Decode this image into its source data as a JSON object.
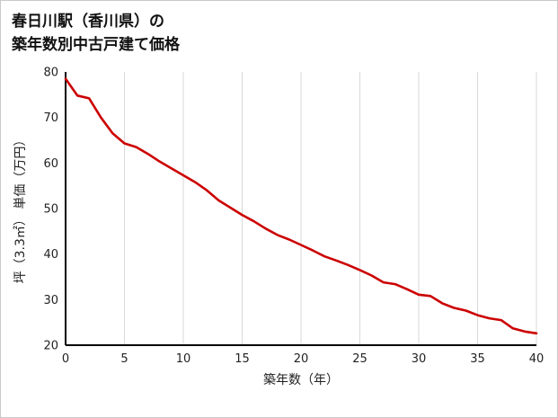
{
  "title": {
    "line1": "春日川駅（香川県）の",
    "line2": "築年数別中古戸建て価格"
  },
  "chart_data": {
    "type": "line",
    "title": "春日川駅（香川県）の築年数別中古戸建て価格",
    "xlabel": "築年数（年）",
    "ylabel": "坪（3.3㎡） 単価（万円）",
    "xlim": [
      0,
      40
    ],
    "ylim": [
      20,
      80
    ],
    "xticks": [
      0,
      5,
      10,
      15,
      20,
      25,
      30,
      35,
      40
    ],
    "yticks": [
      20,
      30,
      40,
      50,
      60,
      70,
      80
    ],
    "grid": "vertical-only",
    "legend": "none",
    "line_color": "#cc0000",
    "axis_color": "#000000",
    "grid_color": "#d9d9d9",
    "x": [
      0,
      1,
      2,
      3,
      4,
      5,
      6,
      7,
      8,
      9,
      10,
      11,
      12,
      13,
      14,
      15,
      16,
      17,
      18,
      19,
      20,
      21,
      22,
      23,
      24,
      25,
      26,
      27,
      28,
      29,
      30,
      31,
      32,
      33,
      34,
      35,
      36,
      37,
      38,
      39,
      40
    ],
    "values": [
      78.5,
      74.8,
      74.2,
      70.0,
      66.5,
      64.3,
      63.5,
      62.0,
      60.3,
      58.8,
      57.3,
      55.8,
      54.0,
      51.8,
      50.2,
      48.6,
      47.2,
      45.6,
      44.2,
      43.2,
      42.0,
      40.8,
      39.5,
      38.6,
      37.6,
      36.5,
      35.3,
      33.8,
      33.4,
      32.3,
      31.1,
      30.8,
      29.2,
      28.2,
      27.6,
      26.6,
      25.9,
      25.5,
      23.7,
      23.0,
      22.6
    ]
  }
}
